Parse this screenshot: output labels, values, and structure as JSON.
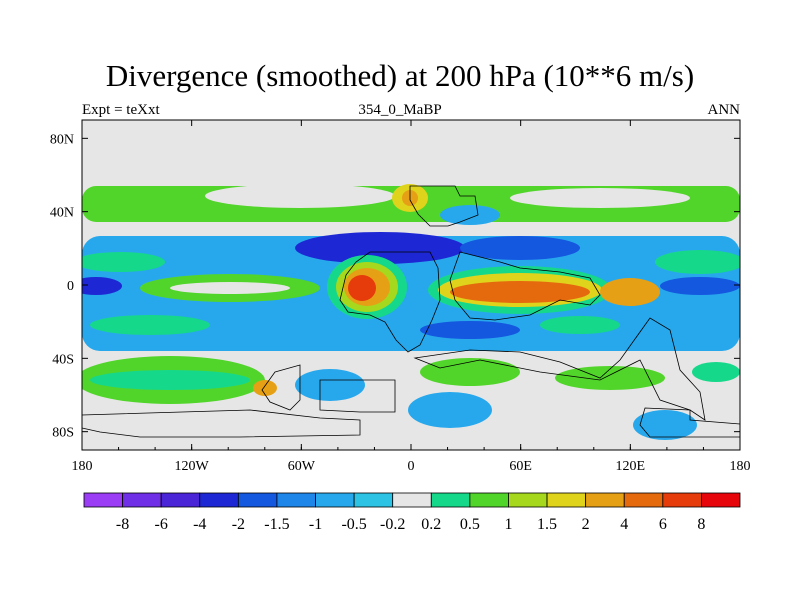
{
  "title": "Divergence (smoothed) at 200 hPa (10**6 m/s)",
  "subtitle_left": "Expt = teXxt",
  "subtitle_center": "354_0_MaBP",
  "subtitle_right": "ANN",
  "map": {
    "x_ticks": [
      "180",
      "120W",
      "60W",
      "0",
      "60E",
      "120E",
      "180"
    ],
    "y_ticks": [
      "80N",
      "40N",
      "0",
      "40S",
      "80S"
    ],
    "background_color": "#e6e6e6"
  },
  "colorbar": {
    "labels": [
      "-8",
      "-6",
      "-4",
      "-2",
      "-1.5",
      "-1",
      "-0.5",
      "-0.2",
      "0.2",
      "0.5",
      "1",
      "1.5",
      "2",
      "4",
      "6",
      "8"
    ],
    "colors": [
      "#9b3df5",
      "#6f2fe6",
      "#4a25d8",
      "#1d28d4",
      "#1458e0",
      "#1e86e8",
      "#28a8ec",
      "#2cc3e4",
      "#e6e6e6",
      "#16d88a",
      "#52d52a",
      "#a6d81e",
      "#e0d31c",
      "#e6a015",
      "#e56a0e",
      "#e63b0b",
      "#e6050a"
    ]
  }
}
